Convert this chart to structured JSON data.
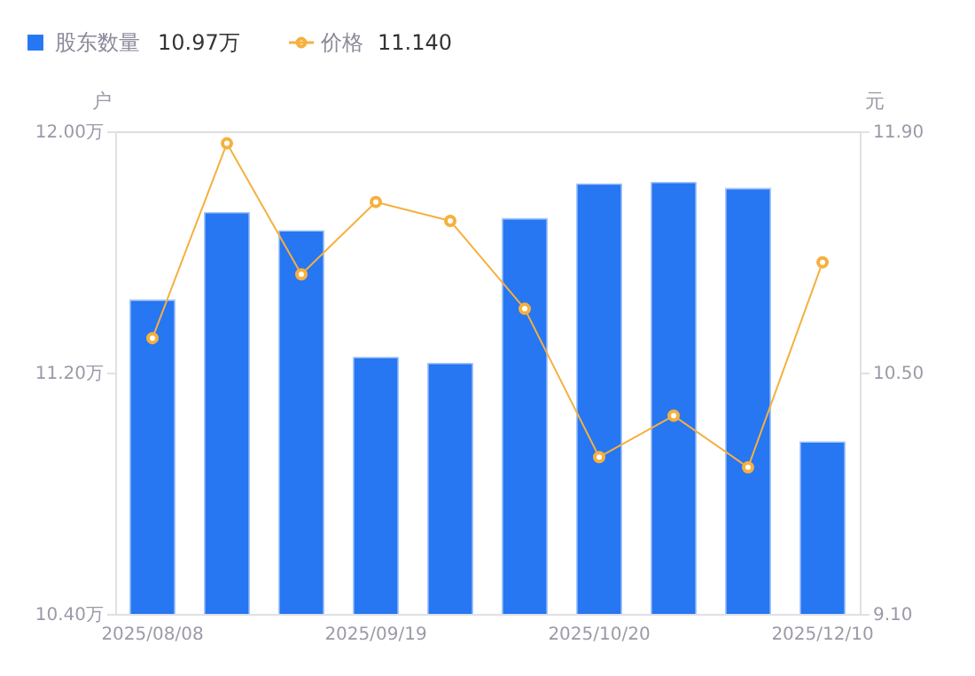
{
  "chart_data": {
    "type": "bar",
    "categories": [
      "2025/08/08",
      null,
      null,
      "2025/09/19",
      null,
      null,
      "2025/10/20",
      null,
      null,
      "2025/12/10"
    ],
    "series": [
      {
        "name": "股东数量",
        "color": "#2776f2",
        "values": [
          11.44,
          11.73,
          11.67,
          11.25,
          11.23,
          11.71,
          11.825,
          11.83,
          11.81,
          10.97
        ]
      },
      {
        "name": "价格",
        "type": "line",
        "axis": "y2",
        "color": "#f5b03f",
        "marker": "circle",
        "line_style": "solid",
        "values": [
          10.7,
          11.83,
          11.07,
          11.49,
          11.38,
          10.87,
          10.01,
          10.25,
          9.95,
          11.14
        ]
      }
    ],
    "annotations": [
      "10.97万",
      "11.140"
    ],
    "ylabel": "户",
    "y2label": "元",
    "ylim": [
      10.4,
      12.0
    ],
    "yticks": [
      {
        "value": 10.4,
        "label": "10.40万"
      },
      {
        "value": 11.2,
        "label": "11.20万"
      },
      {
        "value": 12.0,
        "label": "12.00万"
      }
    ],
    "y2lim": [
      9.1,
      11.9
    ],
    "y2ticks": [
      {
        "value": 9.1,
        "label": "9.10"
      },
      {
        "value": 10.5,
        "label": "10.50"
      },
      {
        "value": 11.9,
        "label": "11.90"
      }
    ],
    "grid": false,
    "legend": "top left"
  }
}
